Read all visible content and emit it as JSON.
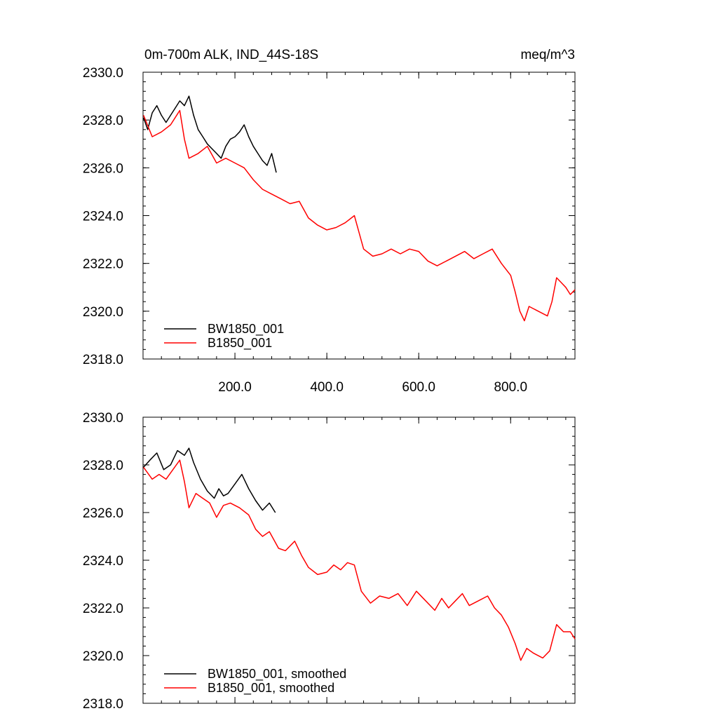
{
  "chart_data": [
    {
      "type": "line",
      "title": "0m-700m ALK, IND_44S-18S",
      "units": "meq/m^3",
      "xlabel": "",
      "ylabel": "",
      "xlim": [
        0,
        940
      ],
      "ylim": [
        2318,
        2330
      ],
      "xticks": [
        200,
        400,
        600,
        800
      ],
      "xtick_labels": [
        "200.0",
        "400.0",
        "600.0",
        "800.0"
      ],
      "yticks": [
        2318,
        2320,
        2322,
        2324,
        2326,
        2328,
        2330
      ],
      "ytick_labels": [
        "2318.0",
        "2320.0",
        "2322.0",
        "2324.0",
        "2326.0",
        "2328.0",
        "2330.0"
      ],
      "grid": false,
      "legend_position": "bottom-left",
      "series": [
        {
          "name": "BW1850_001",
          "color": "#000000",
          "points": [
            [
              1,
              2328.1
            ],
            [
              10,
              2327.6
            ],
            [
              20,
              2328.3
            ],
            [
              30,
              2328.6
            ],
            [
              40,
              2328.2
            ],
            [
              50,
              2327.9
            ],
            [
              60,
              2328.2
            ],
            [
              70,
              2328.5
            ],
            [
              80,
              2328.8
            ],
            [
              90,
              2328.6
            ],
            [
              100,
              2329.0
            ],
            [
              110,
              2328.2
            ],
            [
              120,
              2327.6
            ],
            [
              130,
              2327.3
            ],
            [
              140,
              2327.0
            ],
            [
              150,
              2326.8
            ],
            [
              160,
              2326.6
            ],
            [
              170,
              2326.4
            ],
            [
              180,
              2326.9
            ],
            [
              190,
              2327.2
            ],
            [
              200,
              2327.3
            ],
            [
              210,
              2327.5
            ],
            [
              220,
              2327.8
            ],
            [
              230,
              2327.3
            ],
            [
              240,
              2326.9
            ],
            [
              250,
              2326.6
            ],
            [
              260,
              2326.3
            ],
            [
              270,
              2326.1
            ],
            [
              280,
              2326.6
            ],
            [
              290,
              2325.8
            ]
          ]
        },
        {
          "name": "B1850_001",
          "color": "#ff0000",
          "points": [
            [
              1,
              2328.2
            ],
            [
              20,
              2327.3
            ],
            [
              40,
              2327.5
            ],
            [
              60,
              2327.8
            ],
            [
              80,
              2328.4
            ],
            [
              90,
              2327.2
            ],
            [
              100,
              2326.4
            ],
            [
              120,
              2326.6
            ],
            [
              140,
              2326.9
            ],
            [
              160,
              2326.2
            ],
            [
              180,
              2326.4
            ],
            [
              200,
              2326.2
            ],
            [
              220,
              2326.0
            ],
            [
              240,
              2325.5
            ],
            [
              260,
              2325.1
            ],
            [
              280,
              2324.9
            ],
            [
              300,
              2324.7
            ],
            [
              320,
              2324.5
            ],
            [
              340,
              2324.6
            ],
            [
              360,
              2323.9
            ],
            [
              380,
              2323.6
            ],
            [
              400,
              2323.4
            ],
            [
              420,
              2323.5
            ],
            [
              440,
              2323.7
            ],
            [
              460,
              2324.0
            ],
            [
              480,
              2322.6
            ],
            [
              500,
              2322.3
            ],
            [
              520,
              2322.4
            ],
            [
              540,
              2322.6
            ],
            [
              560,
              2322.4
            ],
            [
              580,
              2322.6
            ],
            [
              600,
              2322.5
            ],
            [
              620,
              2322.1
            ],
            [
              640,
              2321.9
            ],
            [
              660,
              2322.1
            ],
            [
              680,
              2322.3
            ],
            [
              700,
              2322.5
            ],
            [
              720,
              2322.2
            ],
            [
              740,
              2322.4
            ],
            [
              760,
              2322.6
            ],
            [
              780,
              2322.0
            ],
            [
              800,
              2321.5
            ],
            [
              810,
              2320.8
            ],
            [
              820,
              2320.0
            ],
            [
              830,
              2319.6
            ],
            [
              840,
              2320.2
            ],
            [
              860,
              2320.0
            ],
            [
              880,
              2319.8
            ],
            [
              890,
              2320.4
            ],
            [
              900,
              2321.4
            ],
            [
              910,
              2321.2
            ],
            [
              920,
              2321.0
            ],
            [
              930,
              2320.7
            ],
            [
              940,
              2320.9
            ]
          ]
        }
      ]
    },
    {
      "type": "line",
      "title": "",
      "xlabel": "",
      "ylabel": "",
      "xlim": [
        0,
        940
      ],
      "ylim": [
        2318,
        2330
      ],
      "xticks": [
        200,
        400,
        600,
        800
      ],
      "yticks": [
        2318,
        2320,
        2322,
        2324,
        2326,
        2328,
        2330
      ],
      "ytick_labels": [
        "2318.0",
        "2320.0",
        "2322.0",
        "2324.0",
        "2326.0",
        "2328.0",
        "2330.0"
      ],
      "grid": false,
      "legend_position": "bottom-left",
      "series": [
        {
          "name": "BW1850_001, smoothed",
          "color": "#000000",
          "points": [
            [
              1,
              2327.9
            ],
            [
              15,
              2328.2
            ],
            [
              30,
              2328.5
            ],
            [
              45,
              2327.8
            ],
            [
              60,
              2328.0
            ],
            [
              75,
              2328.6
            ],
            [
              90,
              2328.4
            ],
            [
              100,
              2328.7
            ],
            [
              110,
              2328.1
            ],
            [
              125,
              2327.4
            ],
            [
              140,
              2326.9
            ],
            [
              155,
              2326.6
            ],
            [
              165,
              2327.0
            ],
            [
              175,
              2326.7
            ],
            [
              185,
              2326.8
            ],
            [
              200,
              2327.2
            ],
            [
              215,
              2327.6
            ],
            [
              230,
              2327.0
            ],
            [
              245,
              2326.5
            ],
            [
              260,
              2326.1
            ],
            [
              275,
              2326.4
            ],
            [
              288,
              2326.0
            ]
          ]
        },
        {
          "name": "B1850_001, smoothed",
          "color": "#ff0000",
          "points": [
            [
              1,
              2327.9
            ],
            [
              20,
              2327.4
            ],
            [
              35,
              2327.6
            ],
            [
              50,
              2327.4
            ],
            [
              65,
              2327.8
            ],
            [
              80,
              2328.2
            ],
            [
              90,
              2327.3
            ],
            [
              100,
              2326.2
            ],
            [
              115,
              2326.8
            ],
            [
              130,
              2326.6
            ],
            [
              145,
              2326.4
            ],
            [
              160,
              2325.8
            ],
            [
              175,
              2326.3
            ],
            [
              190,
              2326.4
            ],
            [
              210,
              2326.2
            ],
            [
              230,
              2325.9
            ],
            [
              245,
              2325.3
            ],
            [
              260,
              2325.0
            ],
            [
              275,
              2325.2
            ],
            [
              295,
              2324.5
            ],
            [
              310,
              2324.4
            ],
            [
              330,
              2324.8
            ],
            [
              345,
              2324.2
            ],
            [
              360,
              2323.7
            ],
            [
              380,
              2323.4
            ],
            [
              400,
              2323.5
            ],
            [
              415,
              2323.8
            ],
            [
              430,
              2323.6
            ],
            [
              445,
              2323.9
            ],
            [
              460,
              2323.8
            ],
            [
              475,
              2322.7
            ],
            [
              495,
              2322.2
            ],
            [
              515,
              2322.5
            ],
            [
              535,
              2322.4
            ],
            [
              555,
              2322.6
            ],
            [
              575,
              2322.1
            ],
            [
              595,
              2322.7
            ],
            [
              615,
              2322.3
            ],
            [
              635,
              2321.9
            ],
            [
              650,
              2322.4
            ],
            [
              665,
              2322.0
            ],
            [
              680,
              2322.3
            ],
            [
              695,
              2322.6
            ],
            [
              710,
              2322.1
            ],
            [
              730,
              2322.3
            ],
            [
              750,
              2322.5
            ],
            [
              765,
              2322.0
            ],
            [
              780,
              2321.7
            ],
            [
              795,
              2321.2
            ],
            [
              810,
              2320.5
            ],
            [
              822,
              2319.8
            ],
            [
              835,
              2320.3
            ],
            [
              850,
              2320.1
            ],
            [
              870,
              2319.9
            ],
            [
              885,
              2320.2
            ],
            [
              900,
              2321.3
            ],
            [
              915,
              2321.0
            ],
            [
              930,
              2321.0
            ],
            [
              940,
              2320.7
            ]
          ]
        }
      ]
    }
  ]
}
